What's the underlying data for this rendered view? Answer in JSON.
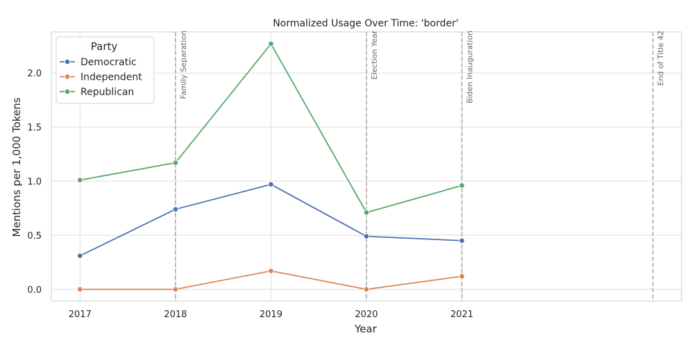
{
  "chart_data": {
    "type": "line",
    "title": "Normalized Usage Over Time: 'border'",
    "xlabel": "Year",
    "ylabel": "Mentions per 1,000 Tokens",
    "x": [
      2017,
      2018,
      2019,
      2020,
      2021
    ],
    "xlim": [
      2016.7,
      2023.3
    ],
    "ylim": [
      -0.11,
      2.38
    ],
    "yticks": [
      0.0,
      0.5,
      1.0,
      1.5,
      2.0
    ],
    "ytick_labels": [
      "0.0",
      "0.5",
      "1.0",
      "1.5",
      "2.0"
    ],
    "xtick_labels": [
      "2017",
      "2018",
      "2019",
      "2020",
      "2021"
    ],
    "grid": true,
    "legend": {
      "title": "Party",
      "position": "top-left"
    },
    "series": [
      {
        "name": "Democratic",
        "color": "#4c72b0",
        "values": [
          0.31,
          0.74,
          0.97,
          0.49,
          0.45
        ]
      },
      {
        "name": "Independent",
        "color": "#dd8452",
        "values": [
          0.0,
          0.0,
          0.17,
          0.0,
          0.12
        ]
      },
      {
        "name": "Republican",
        "color": "#55a868",
        "values": [
          1.01,
          1.17,
          2.27,
          0.71,
          0.96
        ]
      }
    ],
    "annotations": [
      {
        "x": 2018,
        "label": "Family Separation"
      },
      {
        "x": 2020,
        "label": "Election Year"
      },
      {
        "x": 2021,
        "label": "Biden Inauguration"
      },
      {
        "x": 2023,
        "label": "End of Title 42"
      }
    ]
  }
}
